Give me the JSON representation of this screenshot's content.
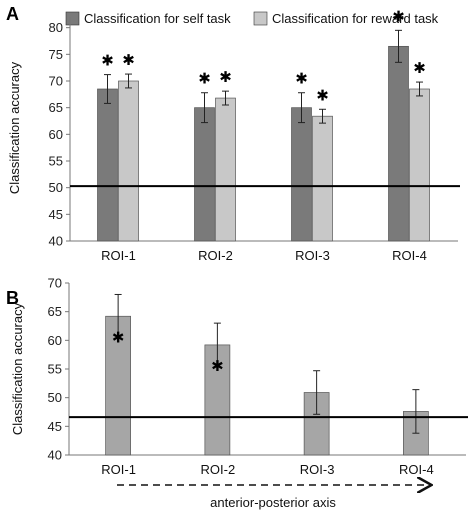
{
  "chart_data": [
    {
      "panel": "A",
      "type": "bar",
      "ylabel": "Classification accuracy",
      "ylim": [
        40,
        82
      ],
      "yticks": [
        40,
        45,
        50,
        55,
        60,
        65,
        70,
        75,
        80
      ],
      "categories": [
        "ROI-1",
        "ROI-2",
        "ROI-3",
        "ROI-4"
      ],
      "reference_line": 50.3,
      "legend_position": "top",
      "significance_marker": "✱",
      "series": [
        {
          "name": "Classification for self task",
          "color": "#7a7a7a",
          "values": [
            68.5,
            65.0,
            65.0,
            76.5
          ],
          "errors": [
            2.7,
            2.8,
            2.8,
            3.0
          ],
          "significant": [
            true,
            true,
            true,
            true
          ]
        },
        {
          "name": "Classification for reward task",
          "color": "#c8c8c8",
          "values": [
            70.0,
            66.8,
            63.4,
            68.5
          ],
          "errors": [
            1.3,
            1.3,
            1.3,
            1.3
          ],
          "significant": [
            true,
            true,
            true,
            true
          ]
        }
      ]
    },
    {
      "panel": "B",
      "type": "bar",
      "ylabel": "Classification accuracy",
      "xlabel": "anterior-posterior axis",
      "ylim": [
        40,
        70
      ],
      "yticks": [
        40,
        45,
        50,
        55,
        60,
        65,
        70
      ],
      "categories": [
        "ROI-1",
        "ROI-2",
        "ROI-3",
        "ROI-4"
      ],
      "reference_line": 46.6,
      "significance_marker": "✱",
      "series": [
        {
          "color": "#a6a6a6",
          "values": [
            64.2,
            59.2,
            50.9,
            47.6
          ],
          "errors": [
            3.8,
            3.8,
            3.8,
            3.8
          ],
          "significant": [
            true,
            true,
            false,
            false
          ]
        }
      ]
    }
  ]
}
